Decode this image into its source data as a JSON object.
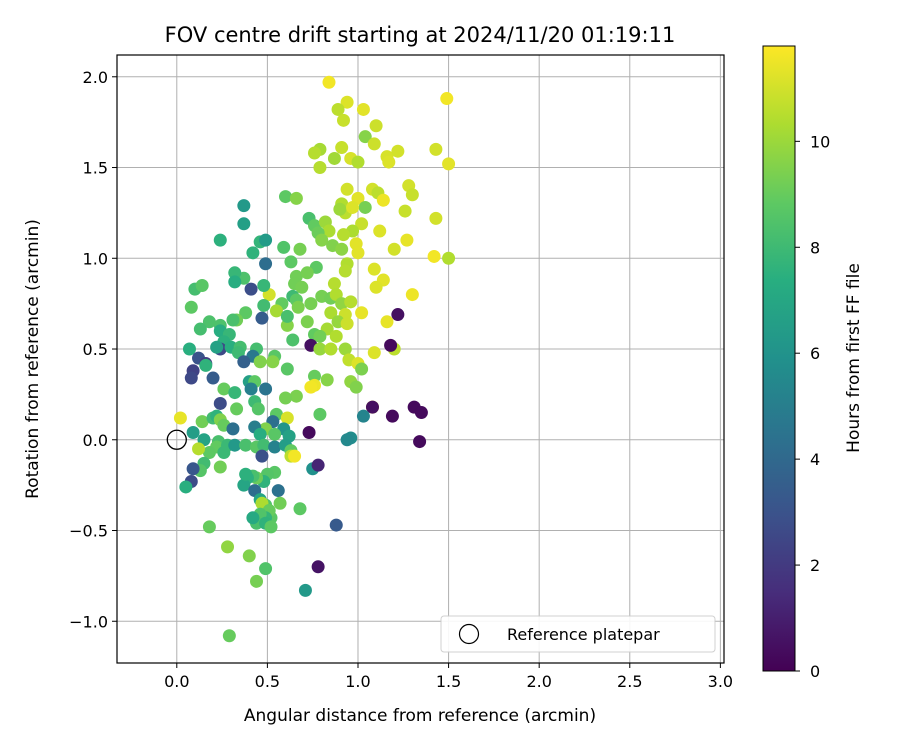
{
  "chart_data": {
    "type": "scatter",
    "title": "FOV centre drift starting at 2024/11/20 01:19:11",
    "xlabel": "Angular distance from reference (arcmin)",
    "ylabel": "Rotation from reference (arcmin)",
    "xlim": [
      -0.33,
      3.02
    ],
    "ylim": [
      -1.23,
      2.12
    ],
    "xticks": [
      0.0,
      0.5,
      1.0,
      1.5,
      2.0,
      2.5,
      3.0
    ],
    "xtick_labels": [
      "0.0",
      "0.5",
      "1.0",
      "1.5",
      "2.0",
      "2.5",
      "3.0"
    ],
    "yticks": [
      -1.0,
      -0.5,
      0.0,
      0.5,
      1.0,
      1.5,
      2.0
    ],
    "ytick_labels": [
      "−1.0",
      "−0.5",
      "0.0",
      "0.5",
      "1.0",
      "1.5",
      "2.0"
    ],
    "grid": true,
    "legend": {
      "position": "lower-right",
      "label": "Reference platepar"
    },
    "reference_point": {
      "x": 0.0,
      "y": 0.0
    },
    "colorbar": {
      "label": "Hours from first FF file",
      "min": 0,
      "max": 11.8,
      "ticks": [
        0,
        2,
        4,
        6,
        8,
        10
      ],
      "tick_labels": [
        "0",
        "2",
        "4",
        "6",
        "8",
        "10"
      ],
      "colormap": "viridis"
    },
    "points": [
      [
        0.84,
        1.97,
        11.6
      ],
      [
        0.94,
        1.86,
        11.2
      ],
      [
        1.03,
        1.82,
        11.3
      ],
      [
        0.89,
        1.82,
        10.6
      ],
      [
        1.49,
        1.88,
        11.6
      ],
      [
        0.92,
        1.76,
        10.8
      ],
      [
        1.1,
        1.73,
        10.9
      ],
      [
        1.04,
        1.67,
        9.6
      ],
      [
        1.09,
        1.63,
        10.9
      ],
      [
        1.16,
        1.56,
        11.1
      ],
      [
        1.22,
        1.59,
        11.0
      ],
      [
        0.79,
        1.6,
        10.2
      ],
      [
        0.76,
        1.58,
        10.5
      ],
      [
        0.91,
        1.61,
        10.8
      ],
      [
        0.96,
        1.55,
        11.1
      ],
      [
        1.0,
        1.53,
        10.4
      ],
      [
        1.43,
        1.6,
        11.0
      ],
      [
        1.17,
        1.53,
        11.2
      ],
      [
        1.5,
        1.52,
        11.3
      ],
      [
        0.87,
        1.55,
        10.1
      ],
      [
        0.79,
        1.5,
        10.5
      ],
      [
        0.6,
        1.34,
        8.8
      ],
      [
        0.66,
        1.33,
        9.6
      ],
      [
        0.94,
        1.38,
        11.0
      ],
      [
        1.08,
        1.38,
        11.0
      ],
      [
        1.11,
        1.36,
        10.6
      ],
      [
        1.28,
        1.4,
        11.0
      ],
      [
        1.3,
        1.35,
        10.8
      ],
      [
        1.0,
        1.33,
        11.3
      ],
      [
        1.14,
        1.32,
        11.5
      ],
      [
        0.91,
        1.3,
        10.4
      ],
      [
        0.93,
        1.25,
        10.6
      ],
      [
        0.9,
        1.27,
        10.0
      ],
      [
        1.04,
        1.28,
        9.3
      ],
      [
        0.97,
        1.28,
        11.2
      ],
      [
        1.26,
        1.26,
        10.8
      ],
      [
        0.73,
        1.22,
        8.3
      ],
      [
        0.76,
        1.18,
        8.9
      ],
      [
        0.82,
        1.2,
        10.0
      ],
      [
        0.84,
        1.15,
        10.3
      ],
      [
        1.02,
        1.19,
        10.8
      ],
      [
        1.43,
        1.22,
        11.0
      ],
      [
        1.12,
        1.15,
        11.2
      ],
      [
        0.78,
        1.14,
        9.1
      ],
      [
        0.8,
        1.1,
        9.6
      ],
      [
        0.97,
        1.15,
        10.3
      ],
      [
        0.92,
        1.13,
        10.5
      ],
      [
        0.86,
        1.07,
        9.5
      ],
      [
        0.99,
        1.08,
        11.3
      ],
      [
        1.27,
        1.1,
        11.4
      ],
      [
        0.91,
        1.05,
        9.7
      ],
      [
        1.2,
        1.05,
        11.0
      ],
      [
        1.0,
        1.03,
        11.3
      ],
      [
        1.42,
        1.01,
        11.6
      ],
      [
        1.5,
        1.0,
        10.4
      ],
      [
        0.94,
        0.97,
        10.4
      ],
      [
        0.93,
        0.93,
        10.5
      ],
      [
        1.09,
        0.94,
        11.2
      ],
      [
        0.59,
        1.06,
        8.5
      ],
      [
        0.68,
        1.05,
        9.3
      ],
      [
        0.66,
        0.9,
        9.2
      ],
      [
        0.77,
        0.95,
        8.8
      ],
      [
        0.63,
        0.98,
        8.8
      ],
      [
        0.72,
        0.92,
        9.3
      ],
      [
        0.65,
        0.86,
        9.2
      ],
      [
        0.69,
        0.84,
        9.3
      ],
      [
        0.87,
        0.86,
        10.5
      ],
      [
        1.14,
        0.88,
        11.3
      ],
      [
        1.1,
        0.84,
        11.2
      ],
      [
        1.3,
        0.8,
        11.5
      ],
      [
        0.8,
        0.79,
        9.3
      ],
      [
        0.85,
        0.78,
        9.2
      ],
      [
        0.88,
        0.8,
        10.4
      ],
      [
        0.91,
        0.75,
        9.8
      ],
      [
        0.96,
        0.76,
        10.5
      ],
      [
        0.64,
        0.79,
        8.0
      ],
      [
        0.66,
        0.77,
        8.8
      ],
      [
        0.74,
        0.75,
        9.3
      ],
      [
        0.67,
        0.73,
        9.4
      ],
      [
        0.58,
        0.75,
        8.9
      ],
      [
        0.51,
        0.8,
        11.0
      ],
      [
        0.55,
        0.71,
        10.2
      ],
      [
        0.85,
        0.7,
        10.3
      ],
      [
        0.93,
        0.69,
        10.9
      ],
      [
        1.02,
        0.7,
        11.4
      ],
      [
        0.72,
        0.65,
        9.4
      ],
      [
        0.89,
        0.65,
        9.9
      ],
      [
        0.61,
        0.63,
        9.6
      ],
      [
        0.83,
        0.61,
        10.2
      ],
      [
        0.88,
        0.57,
        10.4
      ],
      [
        0.94,
        0.64,
        10.9
      ],
      [
        1.16,
        0.65,
        11.4
      ],
      [
        1.22,
        0.69,
        0.5
      ],
      [
        0.61,
        0.68,
        8.3
      ],
      [
        0.76,
        0.58,
        8.9
      ],
      [
        0.79,
        0.57,
        9.2
      ],
      [
        0.64,
        0.55,
        8.4
      ],
      [
        0.74,
        0.52,
        0.5
      ],
      [
        0.79,
        0.5,
        9.9
      ],
      [
        0.85,
        0.5,
        10.4
      ],
      [
        0.93,
        0.5,
        10.0
      ],
      [
        1.09,
        0.48,
        11.2
      ],
      [
        1.2,
        0.5,
        10.6
      ],
      [
        1.18,
        0.52,
        0.3
      ],
      [
        0.95,
        0.44,
        10.7
      ],
      [
        1.0,
        0.42,
        11.2
      ],
      [
        1.02,
        0.39,
        9.4
      ],
      [
        0.76,
        0.35,
        9.0
      ],
      [
        0.83,
        0.33,
        9.6
      ],
      [
        0.76,
        0.3,
        11.5
      ],
      [
        0.96,
        0.32,
        9.8
      ],
      [
        0.99,
        0.29,
        9.5
      ],
      [
        0.74,
        0.29,
        11.6
      ],
      [
        1.08,
        0.18,
        11.4
      ],
      [
        1.08,
        0.18,
        0.5
      ],
      [
        1.19,
        0.13,
        0.3
      ],
      [
        1.31,
        0.18,
        0.3
      ],
      [
        1.35,
        0.15,
        0.3
      ],
      [
        1.34,
        -0.01,
        0.3
      ],
      [
        1.03,
        0.13,
        5.3
      ],
      [
        0.96,
        0.01,
        5.7
      ],
      [
        0.94,
        -0.0,
        5.5
      ],
      [
        0.79,
        0.14,
        8.8
      ],
      [
        0.73,
        0.04,
        0.3
      ],
      [
        0.75,
        -0.16,
        5.9
      ],
      [
        0.78,
        -0.14,
        1.2
      ],
      [
        0.78,
        -0.7,
        0.6
      ],
      [
        0.88,
        -0.47,
        3.3
      ],
      [
        0.71,
        -0.83,
        6.3
      ],
      [
        0.68,
        -0.38,
        8.8
      ],
      [
        0.46,
        1.09,
        7.7
      ],
      [
        0.49,
        1.1,
        6.4
      ],
      [
        0.42,
        1.03,
        7.6
      ],
      [
        0.37,
        1.29,
        6.3
      ],
      [
        0.37,
        1.19,
        6.6
      ],
      [
        0.24,
        1.1,
        7.5
      ],
      [
        0.49,
        0.97,
        4.2
      ],
      [
        0.37,
        0.89,
        8.4
      ],
      [
        0.32,
        0.92,
        7.8
      ],
      [
        0.32,
        0.87,
        7.3
      ],
      [
        0.41,
        0.83,
        2.8
      ],
      [
        0.48,
        0.85,
        7.8
      ],
      [
        0.48,
        0.74,
        8.1
      ],
      [
        0.38,
        0.7,
        8.8
      ],
      [
        0.33,
        0.66,
        9.2
      ],
      [
        0.31,
        0.66,
        8.3
      ],
      [
        0.47,
        0.67,
        3.4
      ],
      [
        0.24,
        0.63,
        8.4
      ],
      [
        0.24,
        0.6,
        7.3
      ],
      [
        0.18,
        0.65,
        8.4
      ],
      [
        0.13,
        0.61,
        8.2
      ],
      [
        0.08,
        0.73,
        8.8
      ],
      [
        0.1,
        0.83,
        8.2
      ],
      [
        0.14,
        0.85,
        8.7
      ],
      [
        0.29,
        0.58,
        7.8
      ],
      [
        0.26,
        0.54,
        7.5
      ],
      [
        0.24,
        0.5,
        2.6
      ],
      [
        0.22,
        0.51,
        6.7
      ],
      [
        0.3,
        0.51,
        7.4
      ],
      [
        0.35,
        0.51,
        8.2
      ],
      [
        0.34,
        0.48,
        8.0
      ],
      [
        0.44,
        0.5,
        8.2
      ],
      [
        0.42,
        0.46,
        4.7
      ],
      [
        0.46,
        0.43,
        9.5
      ],
      [
        0.54,
        0.46,
        8.7
      ],
      [
        0.53,
        0.43,
        9.6
      ],
      [
        0.37,
        0.43,
        3.6
      ],
      [
        0.07,
        0.5,
        7.4
      ],
      [
        0.12,
        0.45,
        3.0
      ],
      [
        0.16,
        0.42,
        2.2
      ],
      [
        0.16,
        0.41,
        7.6
      ],
      [
        0.09,
        0.38,
        2.3
      ],
      [
        0.08,
        0.34,
        2.6
      ],
      [
        0.2,
        0.34,
        3.4
      ],
      [
        0.4,
        0.32,
        6.6
      ],
      [
        0.43,
        0.32,
        8.8
      ],
      [
        0.41,
        0.28,
        5.1
      ],
      [
        0.26,
        0.28,
        9.0
      ],
      [
        0.32,
        0.26,
        7.8
      ],
      [
        0.49,
        0.28,
        4.5
      ],
      [
        0.43,
        0.21,
        8.0
      ],
      [
        0.45,
        0.17,
        8.6
      ],
      [
        0.24,
        0.2,
        2.7
      ],
      [
        0.33,
        0.17,
        9.0
      ],
      [
        0.61,
        0.39,
        8.7
      ],
      [
        0.66,
        0.24,
        9.4
      ],
      [
        0.6,
        0.23,
        9.3
      ],
      [
        0.55,
        0.14,
        8.8
      ],
      [
        0.53,
        0.1,
        4.3
      ],
      [
        0.61,
        0.12,
        11.1
      ],
      [
        0.59,
        0.06,
        6.1
      ],
      [
        0.49,
        0.06,
        9.5
      ],
      [
        0.43,
        0.07,
        5.0
      ],
      [
        0.46,
        0.03,
        7.3
      ],
      [
        0.54,
        0.03,
        8.7
      ],
      [
        0.62,
        0.02,
        6.7
      ],
      [
        0.02,
        0.12,
        11.4
      ],
      [
        0.14,
        0.1,
        9.2
      ],
      [
        0.2,
        0.12,
        8.1
      ],
      [
        0.22,
        0.13,
        7.6
      ],
      [
        0.24,
        0.11,
        9.5
      ],
      [
        0.26,
        0.08,
        9.0
      ],
      [
        0.31,
        0.06,
        4.3
      ],
      [
        0.09,
        0.04,
        6.5
      ],
      [
        0.15,
        0.0,
        6.8
      ],
      [
        0.23,
        -0.01,
        8.3
      ],
      [
        0.22,
        -0.04,
        8.9
      ],
      [
        0.26,
        -0.07,
        7.9
      ],
      [
        0.18,
        -0.07,
        8.8
      ],
      [
        0.12,
        -0.05,
        10.5
      ],
      [
        0.15,
        -0.13,
        8.1
      ],
      [
        0.13,
        -0.17,
        8.6
      ],
      [
        0.09,
        -0.16,
        3.2
      ],
      [
        0.08,
        -0.23,
        2.7
      ],
      [
        0.05,
        -0.26,
        7.4
      ],
      [
        0.24,
        -0.15,
        9.2
      ],
      [
        0.28,
        -0.03,
        7.9
      ],
      [
        0.32,
        -0.03,
        6.3
      ],
      [
        0.38,
        -0.03,
        8.3
      ],
      [
        0.44,
        -0.04,
        8.7
      ],
      [
        0.48,
        -0.03,
        8.1
      ],
      [
        0.47,
        -0.09,
        2.9
      ],
      [
        0.54,
        -0.04,
        5.2
      ],
      [
        0.6,
        -0.03,
        6.5
      ],
      [
        0.63,
        -0.06,
        8.9
      ],
      [
        0.63,
        -0.09,
        10.6
      ],
      [
        0.65,
        -0.09,
        11.6
      ],
      [
        0.54,
        -0.18,
        8.7
      ],
      [
        0.5,
        -0.19,
        8.6
      ],
      [
        0.48,
        -0.23,
        7.6
      ],
      [
        0.44,
        -0.21,
        9.1
      ],
      [
        0.42,
        -0.2,
        8.3
      ],
      [
        0.39,
        -0.21,
        7.5
      ],
      [
        0.37,
        -0.25,
        6.9
      ],
      [
        0.38,
        -0.19,
        7.5
      ],
      [
        0.43,
        -0.28,
        4.2
      ],
      [
        0.56,
        -0.28,
        4.4
      ],
      [
        0.57,
        -0.35,
        9.2
      ],
      [
        0.49,
        -0.36,
        8.5
      ],
      [
        0.46,
        -0.33,
        6.9
      ],
      [
        0.47,
        -0.35,
        10.3
      ],
      [
        0.52,
        -0.43,
        8.7
      ],
      [
        0.51,
        -0.39,
        9.0
      ],
      [
        0.49,
        -0.43,
        7.7
      ],
      [
        0.46,
        -0.41,
        8.5
      ],
      [
        0.44,
        -0.46,
        8.3
      ],
      [
        0.42,
        -0.43,
        7.1
      ],
      [
        0.49,
        -0.46,
        7.6
      ],
      [
        0.52,
        -0.48,
        8.8
      ],
      [
        0.18,
        -0.48,
        9.0
      ],
      [
        0.28,
        -0.59,
        9.8
      ],
      [
        0.4,
        -0.64,
        9.5
      ],
      [
        0.44,
        -0.78,
        9.3
      ],
      [
        0.49,
        -0.71,
        8.5
      ],
      [
        0.29,
        -1.08,
        9.0
      ]
    ]
  }
}
